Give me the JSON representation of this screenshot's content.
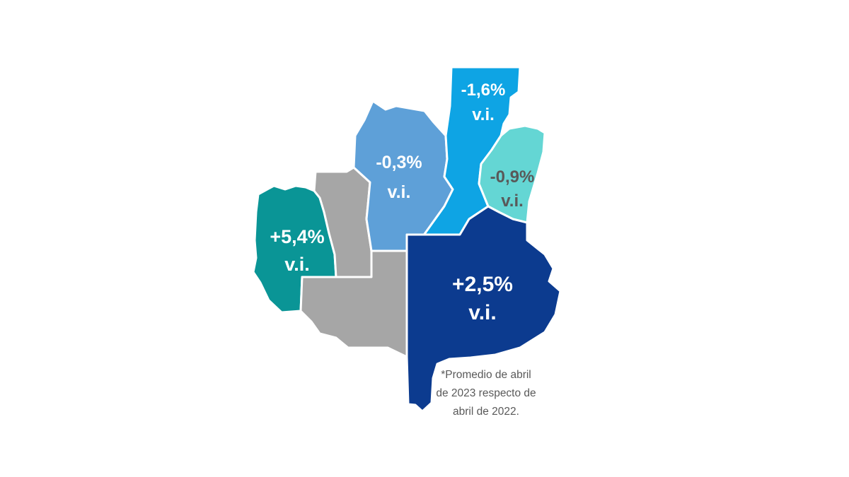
{
  "regions": [
    {
      "id": "west",
      "value": "+5,4%",
      "suffix": "v.i.",
      "color": "#0a9596",
      "label_color": "#ffffff"
    },
    {
      "id": "center-west",
      "value": "",
      "suffix": "",
      "color": "#a6a6a6",
      "label_color": "#ffffff"
    },
    {
      "id": "center-south",
      "value": "",
      "suffix": "",
      "color": "#a6a6a6",
      "label_color": "#ffffff"
    },
    {
      "id": "center-north",
      "value": "-0,3%",
      "suffix": "v.i.",
      "color": "#5ea0d8",
      "label_color": "#ffffff"
    },
    {
      "id": "north",
      "value": "-1,6%",
      "suffix": "v.i.",
      "color": "#0ea4e4",
      "label_color": "#ffffff"
    },
    {
      "id": "northeast",
      "value": "-0,9%",
      "suffix": "v.i.",
      "color": "#64d6d4",
      "label_color": "#595959"
    },
    {
      "id": "southeast",
      "value": "+2,5%",
      "suffix": "v.i.",
      "color": "#0c3b8f",
      "label_color": "#ffffff"
    }
  ],
  "footnote": {
    "line1": "*Promedio de abril",
    "line2": "de 2023 respecto de",
    "line3": "abril de 2022."
  }
}
